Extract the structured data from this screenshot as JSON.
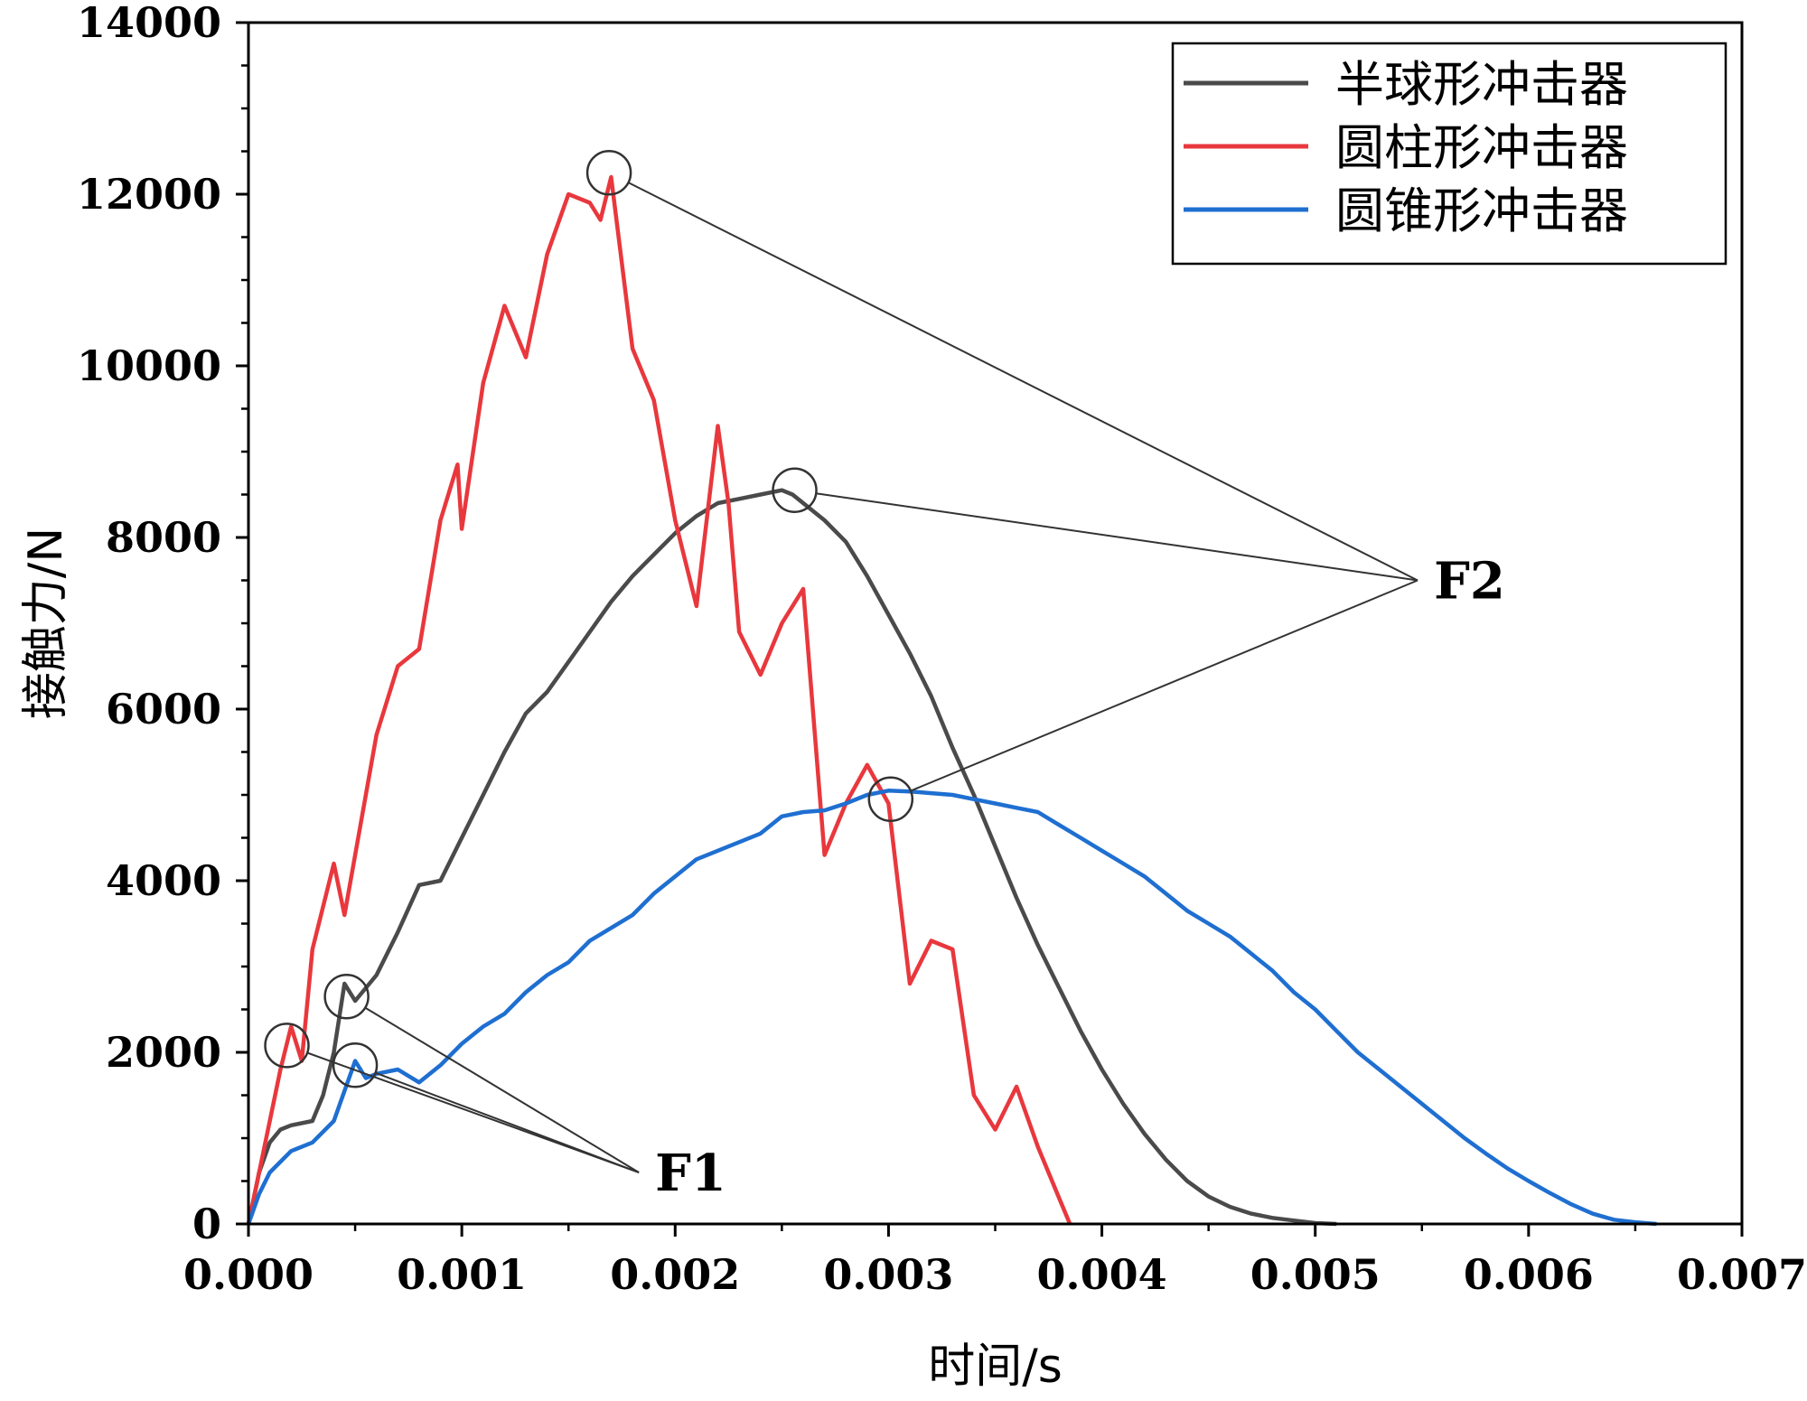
{
  "chart_data": {
    "type": "line",
    "title": "",
    "xlabel": "时间/s",
    "ylabel": "接触力/N",
    "xlim": [
      0,
      0.007
    ],
    "ylim": [
      0,
      14000
    ],
    "x_ticks": [
      "0.000",
      "0.001",
      "0.002",
      "0.003",
      "0.004",
      "0.005",
      "0.006",
      "0.007"
    ],
    "y_ticks": [
      "0",
      "2000",
      "4000",
      "6000",
      "8000",
      "10000",
      "12000",
      "14000"
    ],
    "grid": false,
    "legend_position": "top-right",
    "series": [
      {
        "name": "半球形冲击器",
        "color": "#4a4a4a",
        "x": [
          0,
          5e-05,
          0.0001,
          0.00015,
          0.0002,
          0.0003,
          0.00035,
          0.0004,
          0.00045,
          0.0005,
          0.0006,
          0.0007,
          0.0008,
          0.0009,
          0.001,
          0.0011,
          0.0012,
          0.0013,
          0.0014,
          0.0015,
          0.0016,
          0.0017,
          0.0018,
          0.0019,
          0.002,
          0.0021,
          0.0022,
          0.0023,
          0.0024,
          0.0025,
          0.00255,
          0.0026,
          0.0027,
          0.0028,
          0.0029,
          0.003,
          0.0031,
          0.0032,
          0.0033,
          0.0034,
          0.0035,
          0.0036,
          0.0037,
          0.0038,
          0.0039,
          0.004,
          0.0041,
          0.0042,
          0.0043,
          0.0044,
          0.0045,
          0.0046,
          0.0047,
          0.0048,
          0.0049,
          0.005,
          0.0051
        ],
        "y": [
          0,
          600,
          950,
          1100,
          1150,
          1200,
          1500,
          2000,
          2800,
          2600,
          2900,
          3400,
          3950,
          4000,
          4500,
          5000,
          5500,
          5950,
          6200,
          6550,
          6900,
          7250,
          7550,
          7800,
          8050,
          8250,
          8400,
          8450,
          8500,
          8550,
          8500,
          8400,
          8200,
          7950,
          7550,
          7100,
          6650,
          6150,
          5550,
          5000,
          4400,
          3800,
          3250,
          2750,
          2250,
          1800,
          1400,
          1050,
          750,
          500,
          320,
          200,
          120,
          70,
          40,
          10,
          0
        ]
      },
      {
        "name": "圆柱形冲击器",
        "color": "#e8383d",
        "x": [
          0,
          0.0001,
          0.00015,
          0.0002,
          0.00025,
          0.0003,
          0.0004,
          0.00045,
          0.0005,
          0.0006,
          0.0007,
          0.0008,
          0.0009,
          0.00098,
          0.001,
          0.0011,
          0.0012,
          0.0013,
          0.0014,
          0.0015,
          0.0016,
          0.00165,
          0.0017,
          0.0018,
          0.0019,
          0.002,
          0.0021,
          0.0022,
          0.00225,
          0.0023,
          0.0024,
          0.0025,
          0.0026,
          0.0027,
          0.0028,
          0.0029,
          0.003,
          0.0031,
          0.0032,
          0.0033,
          0.0034,
          0.0035,
          0.0036,
          0.0037,
          0.0038,
          0.00385
        ],
        "y": [
          0,
          1200,
          1800,
          2300,
          1900,
          3200,
          4200,
          3600,
          4300,
          5700,
          6500,
          6700,
          8200,
          8850,
          8100,
          9800,
          10700,
          10100,
          11300,
          12000,
          11900,
          11700,
          12200,
          10200,
          9600,
          8200,
          7200,
          9300,
          8400,
          6900,
          6400,
          7000,
          7400,
          4300,
          4900,
          5350,
          4900,
          2800,
          3300,
          3200,
          1500,
          1100,
          1600,
          900,
          300,
          0
        ]
      },
      {
        "name": "圆锥形冲击器",
        "color": "#1f6fd1",
        "x": [
          0,
          5e-05,
          0.0001,
          0.0002,
          0.0003,
          0.0004,
          0.0005,
          0.00055,
          0.0006,
          0.0007,
          0.0008,
          0.0009,
          0.001,
          0.0011,
          0.0012,
          0.0013,
          0.0014,
          0.0015,
          0.0016,
          0.0017,
          0.0018,
          0.0019,
          0.002,
          0.0021,
          0.0022,
          0.0023,
          0.0024,
          0.0025,
          0.0026,
          0.0027,
          0.0028,
          0.0029,
          0.003,
          0.0031,
          0.0032,
          0.0033,
          0.0034,
          0.0035,
          0.0036,
          0.0037,
          0.0038,
          0.0039,
          0.004,
          0.0041,
          0.0042,
          0.0043,
          0.0044,
          0.0045,
          0.0046,
          0.0047,
          0.0048,
          0.0049,
          0.005,
          0.0051,
          0.0052,
          0.0053,
          0.0054,
          0.0055,
          0.0056,
          0.0057,
          0.0058,
          0.0059,
          0.006,
          0.0061,
          0.0062,
          0.0063,
          0.0064,
          0.0065,
          0.0066
        ],
        "y": [
          0,
          350,
          600,
          850,
          950,
          1200,
          1900,
          1700,
          1750,
          1800,
          1650,
          1850,
          2100,
          2300,
          2450,
          2700,
          2900,
          3050,
          3300,
          3450,
          3600,
          3850,
          4050,
          4250,
          4350,
          4450,
          4550,
          4750,
          4800,
          4820,
          4900,
          5000,
          5050,
          5040,
          5020,
          5000,
          4950,
          4900,
          4850,
          4800,
          4650,
          4500,
          4350,
          4200,
          4050,
          3850,
          3650,
          3500,
          3350,
          3150,
          2950,
          2700,
          2500,
          2250,
          2000,
          1800,
          1600,
          1400,
          1200,
          1000,
          820,
          650,
          500,
          360,
          230,
          120,
          50,
          20,
          0
        ]
      }
    ],
    "annotations": [
      {
        "label": "F1",
        "text_at": [
          0.00183,
          600
        ],
        "markers": [
          [
            0.00018,
            2080
          ],
          [
            0.00046,
            2650
          ],
          [
            0.0005,
            1850
          ]
        ]
      },
      {
        "label": "F2",
        "text_at": [
          0.00548,
          7500
        ],
        "markers": [
          [
            0.00169,
            12250
          ],
          [
            0.00256,
            8550
          ],
          [
            0.00301,
            4950
          ]
        ]
      }
    ]
  }
}
